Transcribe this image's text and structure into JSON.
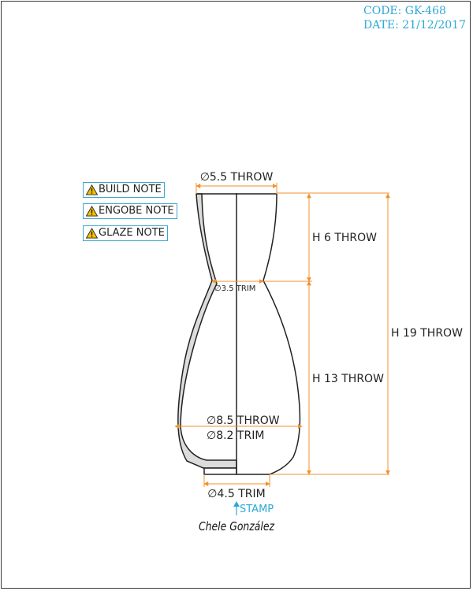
{
  "header": {
    "code": "CODE: GK-468",
    "date": "DATE: 21/12/2017"
  },
  "notes": [
    {
      "label": "BUILD NOTE",
      "icon": "warning-icon"
    },
    {
      "label": "ENGOBE NOTE",
      "icon": "warning-icon"
    },
    {
      "label": "GLAZE NOTE",
      "icon": "warning-icon"
    }
  ],
  "dimensions": {
    "rim": "∅5.5 THROW",
    "neck": "∅3.5 TRIM",
    "belly_throw": "∅8.5 THROW",
    "belly_trim": "∅8.2 TRIM",
    "foot": "∅4.5 TRIM",
    "height_upper": "H 6 THROW",
    "height_lower": "H 13 THROW",
    "height_total": "H 19 THROW"
  },
  "stamp": "STAMP",
  "signature": "Chele González",
  "colors": {
    "accent": "#2ea8d6",
    "dimension": "#f0922e",
    "outline": "#222222",
    "section_fill": "#dcdcdc",
    "note_icon": "#f2c200"
  }
}
